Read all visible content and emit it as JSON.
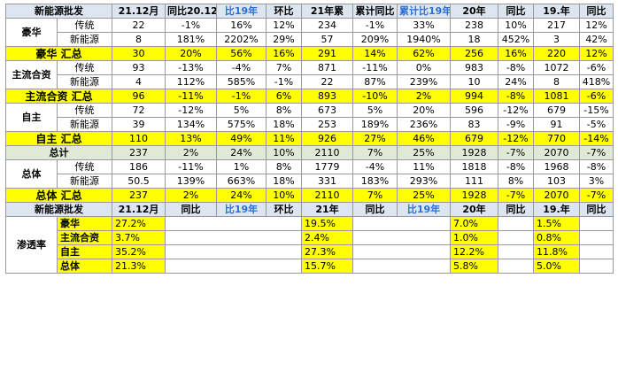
{
  "header": [
    "新能源批发",
    "21.12月",
    "同比20.12",
    "比19年",
    "环比",
    "21年累",
    "累计同比",
    "累计比19年",
    "20年",
    "同比",
    "19.年",
    "同比"
  ],
  "rows": [
    {
      "kind": "detail",
      "cat": "豪华",
      "sub": "传统",
      "vals": [
        "22",
        "-1%",
        "16%",
        "12%",
        "234",
        "-1%",
        "33%",
        "238",
        "10%",
        "217",
        "12%"
      ]
    },
    {
      "kind": "detail",
      "sub": "新能源",
      "vals": [
        "8",
        "181%",
        "2202%",
        "29%",
        "57",
        "209%",
        "1940%",
        "18",
        "452%",
        "3",
        "42%"
      ]
    },
    {
      "kind": "sum",
      "label": "豪华 汇总",
      "vals": [
        "30",
        "20%",
        "56%",
        "16%",
        "291",
        "14%",
        "62%",
        "256",
        "16%",
        "220",
        "12%"
      ]
    },
    {
      "kind": "detail",
      "cat": "主流合资",
      "sub": "传统",
      "vals": [
        "93",
        "-13%",
        "-4%",
        "7%",
        "871",
        "-11%",
        "0%",
        "983",
        "-8%",
        "1072",
        "-6%"
      ]
    },
    {
      "kind": "detail",
      "sub": "新能源",
      "vals": [
        "4",
        "112%",
        "585%",
        "-1%",
        "22",
        "87%",
        "239%",
        "10",
        "24%",
        "8",
        "418%"
      ]
    },
    {
      "kind": "sum",
      "label": "主流合资 汇总",
      "vals": [
        "96",
        "-11%",
        "-1%",
        "6%",
        "893",
        "-10%",
        "2%",
        "994",
        "-8%",
        "1081",
        "-6%"
      ]
    },
    {
      "kind": "detail",
      "cat": "自主",
      "sub": "传统",
      "vals": [
        "72",
        "-12%",
        "5%",
        "8%",
        "673",
        "5%",
        "20%",
        "596",
        "-12%",
        "679",
        "-15%"
      ]
    },
    {
      "kind": "detail",
      "sub": "新能源",
      "vals": [
        "39",
        "134%",
        "575%",
        "18%",
        "253",
        "189%",
        "236%",
        "83",
        "-9%",
        "91",
        "-5%"
      ]
    },
    {
      "kind": "sum",
      "label": "自主 汇总",
      "vals": [
        "110",
        "13%",
        "49%",
        "11%",
        "926",
        "27%",
        "46%",
        "679",
        "-12%",
        "770",
        "-14%"
      ]
    },
    {
      "kind": "total",
      "label": "总计",
      "vals": [
        "237",
        "2%",
        "24%",
        "10%",
        "2110",
        "7%",
        "25%",
        "1928",
        "-7%",
        "2070",
        "-7%"
      ]
    },
    {
      "kind": "detail",
      "cat": "总体",
      "sub": "传统",
      "vals": [
        "186",
        "-11%",
        "1%",
        "8%",
        "1779",
        "-4%",
        "11%",
        "1818",
        "-8%",
        "1968",
        "-8%"
      ]
    },
    {
      "kind": "detail",
      "sub": "新能源",
      "vals": [
        "50.5",
        "139%",
        "663%",
        "18%",
        "331",
        "183%",
        "293%",
        "111",
        "8%",
        "103",
        "3%"
      ]
    },
    {
      "kind": "sum",
      "label": "总体 汇总",
      "vals": [
        "237",
        "2%",
        "24%",
        "10%",
        "2110",
        "7%",
        "25%",
        "1928",
        "-7%",
        "2070",
        "-7%"
      ]
    }
  ],
  "header2": [
    "新能源批发",
    "21.12月",
    "同比",
    "比19年",
    "环比",
    "21年",
    "同比",
    "比19年",
    "20年",
    "同比",
    "19.年",
    "同比"
  ],
  "penetration": {
    "label": "渗透率",
    "rows": [
      {
        "name": "豪华",
        "m": "27.2%",
        "y21": "19.5%",
        "y20": "7.0%",
        "y19": "1.5%"
      },
      {
        "name": "主流合资",
        "m": "3.7%",
        "y21": "2.4%",
        "y20": "1.0%",
        "y19": "0.8%"
      },
      {
        "name": "自主",
        "m": "35.2%",
        "y21": "27.3%",
        "y20": "12.2%",
        "y19": "11.8%"
      },
      {
        "name": "总体",
        "m": "21.3%",
        "y21": "15.7%",
        "y20": "5.8%",
        "y19": "5.0%"
      }
    ]
  }
}
